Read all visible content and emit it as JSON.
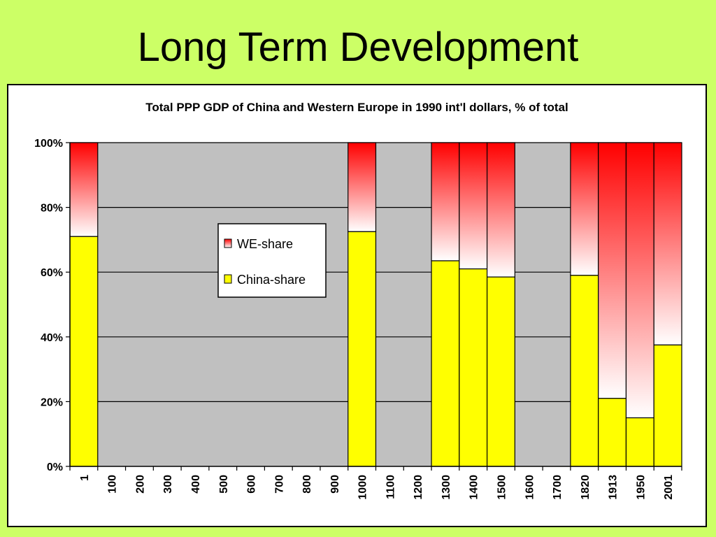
{
  "slide": {
    "title": "Long Term Development"
  },
  "colors": {
    "background": "#ccff66",
    "plot_area": "#c0c0c0",
    "china": "#ffff00",
    "we_top": "#ff0000",
    "we_bottom": "#ffffff"
  },
  "chart_data": {
    "type": "bar",
    "stacked": true,
    "title": "Total PPP GDP of China and Western Europe in 1990 int'l dollars, % of total",
    "xlabel": "",
    "ylabel": "",
    "ylim": [
      0,
      100
    ],
    "yticks": [
      "0%",
      "20%",
      "40%",
      "60%",
      "80%",
      "100%"
    ],
    "grid": true,
    "legend_position": "center-left",
    "categories": [
      "1",
      "100",
      "200",
      "300",
      "400",
      "500",
      "600",
      "700",
      "800",
      "900",
      "1000",
      "1100",
      "1200",
      "1300",
      "1400",
      "1500",
      "1600",
      "1700",
      "1820",
      "1913",
      "1950",
      "2001"
    ],
    "series": [
      {
        "name": "China-share",
        "color": "#ffff00",
        "values": [
          71,
          null,
          null,
          null,
          null,
          null,
          null,
          null,
          null,
          null,
          72.5,
          null,
          null,
          63.5,
          61,
          58.5,
          null,
          null,
          59,
          21,
          15,
          37.5
        ]
      },
      {
        "name": "WE-share",
        "color": "gradient-red-to-white",
        "values": [
          29,
          null,
          null,
          null,
          null,
          null,
          null,
          null,
          null,
          null,
          27.5,
          null,
          null,
          36.5,
          39,
          41.5,
          null,
          null,
          41,
          79,
          85,
          62.5
        ]
      }
    ],
    "legend": [
      {
        "label": "WE-share"
      },
      {
        "label": "China-share"
      }
    ]
  }
}
